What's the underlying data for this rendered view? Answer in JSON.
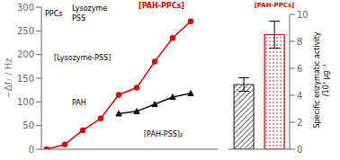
{
  "chart_data": [
    {
      "type": "line",
      "y_label": "−Δf₇ / Hz",
      "xlim": [
        -0.3,
        9.5
      ],
      "ylim": [
        0,
        300
      ],
      "yticks": [
        0,
        50,
        100,
        150,
        200,
        250,
        300
      ],
      "tick_labels": "y",
      "series": [
        {
          "color": "#dd0000",
          "marker": "circle",
          "x": [
            0,
            1,
            2,
            3,
            4,
            5,
            6,
            7,
            8
          ],
          "values": [
            0,
            10,
            40,
            65,
            115,
            130,
            185,
            235,
            270
          ]
        },
        {
          "color": "#111111",
          "marker": "triangle",
          "x": [
            4,
            5,
            6,
            7,
            8
          ],
          "values": [
            75,
            80,
            95,
            110,
            118
          ]
        }
      ],
      "annotations": [
        {
          "text": "PPCs"
        },
        {
          "text": "Lysozyme"
        },
        {
          "text": "PSS"
        },
        {
          "text": "[PAH-PSS]₂"
        },
        {
          "text": "PAH"
        },
        {
          "text": "[Lysozyme-PSS]"
        },
        {
          "text": "[PAH-PPCs]",
          "color": "#dd0000"
        }
      ]
    },
    {
      "type": "bar",
      "y_label": "Specific enzymatic activity\n/10³ μg⁻¹",
      "categories": [
        null,
        null
      ],
      "values": [
        4.8,
        8.5
      ],
      "errors": [
        0.5,
        1.0
      ],
      "colors": [
        "#333333",
        "#cc0000"
      ],
      "ylim": [
        0,
        10
      ],
      "yticks": [
        0,
        2,
        4,
        6,
        8,
        10
      ],
      "tick_labels": "y",
      "annotations": [
        {
          "text": "[PAH-PPCs]",
          "color": "#dd0000"
        }
      ]
    }
  ]
}
